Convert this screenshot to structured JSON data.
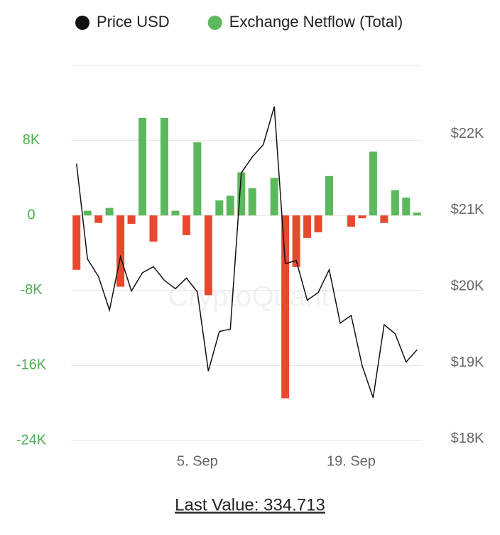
{
  "chart_data": {
    "type": "bar",
    "categories": [
      null,
      null,
      null,
      null,
      null,
      null,
      null,
      null,
      null,
      null,
      null,
      "5. Sep",
      null,
      null,
      null,
      null,
      null,
      null,
      null,
      null,
      null,
      null,
      null,
      null,
      null,
      "19. Sep",
      null,
      null,
      null,
      null,
      null,
      null
    ],
    "series": [
      {
        "name": "Price USD",
        "type": "line",
        "axis": "y2",
        "color": "#111111",
        "values": [
          21610,
          20360,
          20130,
          19690,
          20390,
          19940,
          20180,
          20260,
          20080,
          19970,
          20110,
          19930,
          18890,
          19410,
          19440,
          21490,
          21700,
          21860,
          22360,
          20300,
          20340,
          19820,
          19920,
          20220,
          19520,
          19620,
          18960,
          18540,
          19500,
          19380,
          19010,
          19170
        ]
      },
      {
        "name": "Exchange Netflow (Total)",
        "type": "bar",
        "color": "#5cb85c",
        "negative_color": "#e8492e",
        "values": [
          -5800,
          500,
          -800,
          800,
          -7600,
          -900,
          10400,
          -2800,
          10400,
          500,
          -2100,
          7800,
          -8500,
          1600,
          2100,
          4600,
          2900,
          0,
          4000,
          -19500,
          -5500,
          -2400,
          -1800,
          4200,
          0,
          -1200,
          -300,
          6800,
          -800,
          2700,
          1900,
          300
        ]
      }
    ],
    "ylim": [
      -24000,
      16000
    ],
    "yticks": [
      {
        "value": -24000,
        "label": "-24K"
      },
      {
        "value": -16000,
        "label": "-16K"
      },
      {
        "value": -8000,
        "label": "-8K"
      },
      0,
      {
        "value": 8000,
        "label": "8K"
      }
    ],
    "y2lim": [
      17980,
      22900
    ],
    "y2ticks": [
      {
        "value": 18000,
        "label": "$18K"
      },
      {
        "value": 19000,
        "label": "$19K"
      },
      {
        "value": 20000,
        "label": "$20K"
      },
      {
        "value": 21000,
        "label": "$21K"
      },
      {
        "value": 22000,
        "label": "$22K"
      }
    ],
    "grid": true,
    "legend": "top",
    "watermark": "CryptoQuant"
  },
  "footer": "Last Value: 334.713"
}
